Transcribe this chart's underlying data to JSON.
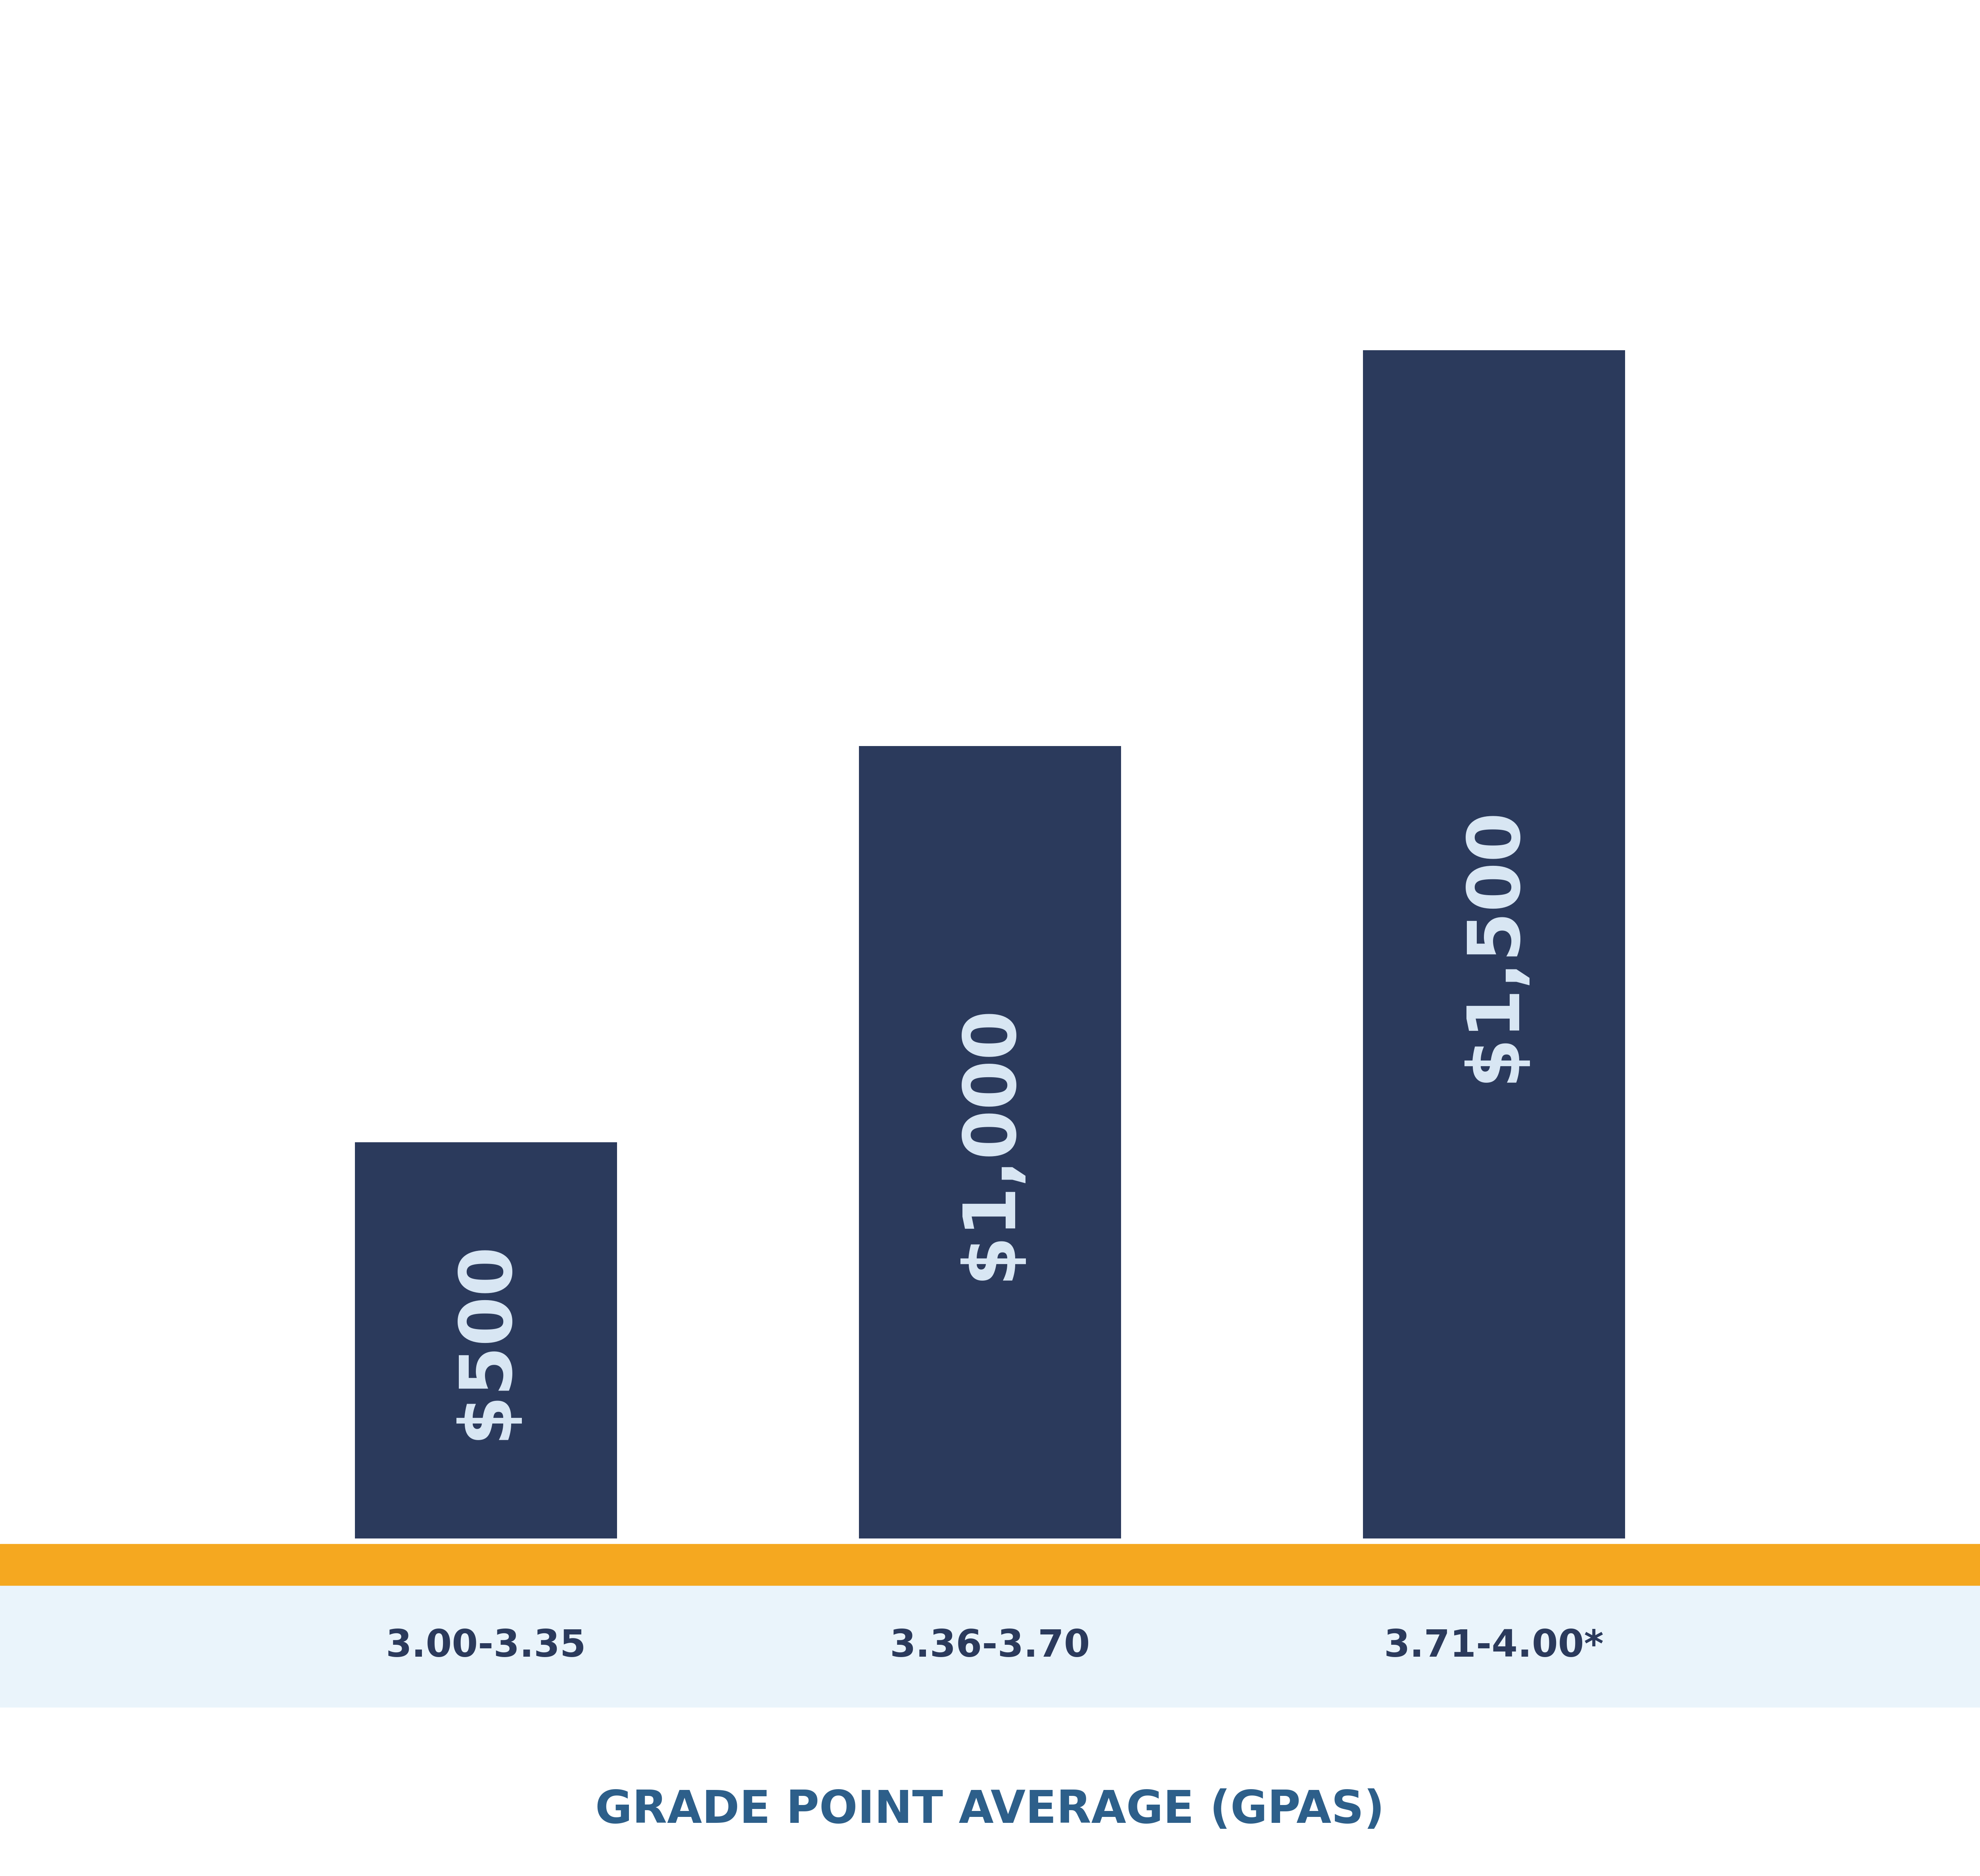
{
  "categories": [
    "3.00-3.35",
    "3.36-3.70",
    "3.71-4.00*"
  ],
  "values": [
    500,
    1000,
    1500
  ],
  "bar_labels": [
    "$500",
    "$1,000",
    "$1,500"
  ],
  "bar_color": "#2B3A5C",
  "label_color": "#DAE8F5",
  "xlabel": "GRADE POINT AVERAGE (GPAS)",
  "xlabel_color": "#2D5F8A",
  "tick_label_color": "#2B3A5C",
  "gold_line_color": "#F5A820",
  "light_blue_bg": "#EAF4FB",
  "background_color": "#FFFFFF",
  "bar_width": 0.52,
  "ylim": [
    0,
    1800
  ],
  "label_fontsize": 130,
  "tick_fontsize": 68,
  "xlabel_fontsize": 82
}
